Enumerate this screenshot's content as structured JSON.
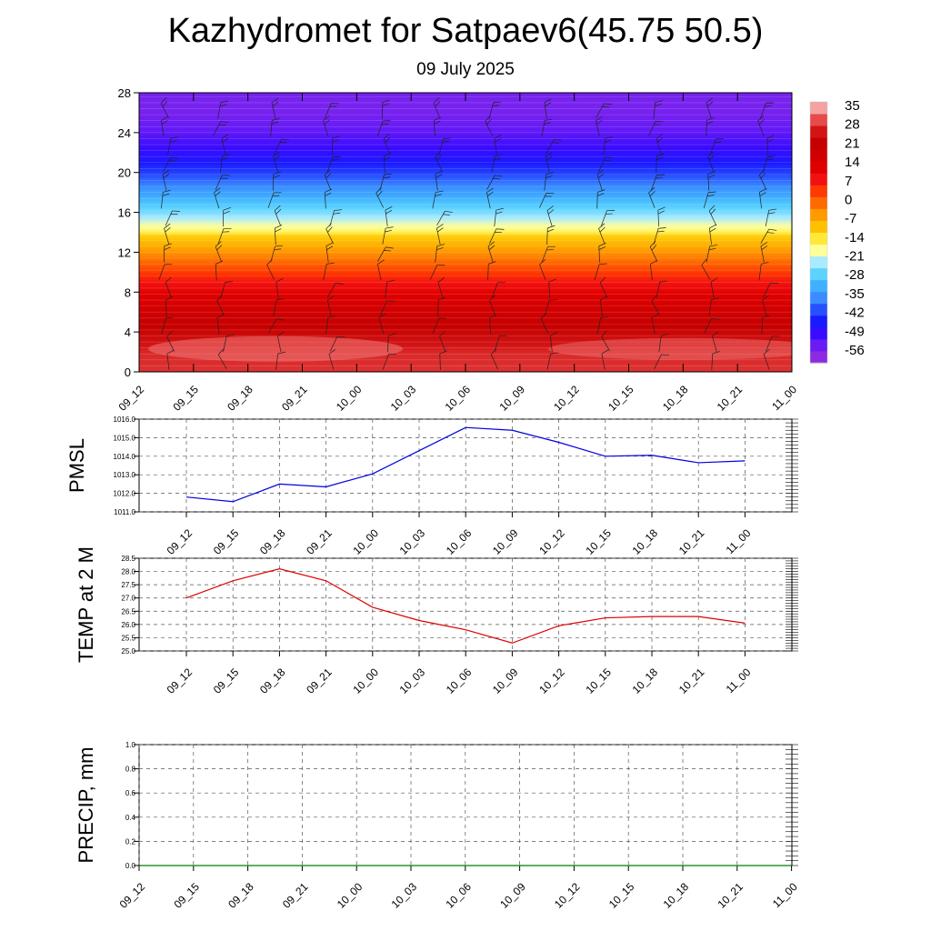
{
  "title": "Kazhydromet for Satpaev6(45.75 50.5)",
  "subtitle": "09 July 2025",
  "chart_data": [
    {
      "type": "heatmap",
      "x_labels": [
        "09_12",
        "09_15",
        "09_18",
        "09_21",
        "10_00",
        "10_03",
        "10_06",
        "10_09",
        "10_12",
        "10_15",
        "10_18",
        "10_21",
        "11_00"
      ],
      "y_ticks": [
        "0",
        "4",
        "8",
        "12",
        "16",
        "20",
        "24",
        "28"
      ],
      "ylim": [
        0,
        28
      ],
      "colorbar_labels": [
        "35",
        "28",
        "21",
        "14",
        "7",
        "0",
        "-7",
        "-14",
        "-21",
        "-28",
        "-35",
        "-42",
        "-49",
        "-56"
      ],
      "colorbar_range": [
        -63,
        39
      ],
      "colorbar_colors": [
        "#8b2be2",
        "#6a1cf5",
        "#3a0cff",
        "#1a1aff",
        "#2850ff",
        "#3a8cff",
        "#3fb0ff",
        "#5cd3ff",
        "#a8eaff",
        "#ffff9a",
        "#ffe83a",
        "#ffc000",
        "#ff9a00",
        "#ff6a00",
        "#ff3a00",
        "#f31010",
        "#e00000",
        "#d00000",
        "#c60000",
        "#d21414",
        "#e64a4a",
        "#f4a2a2"
      ],
      "profile": [
        {
          "y": 0,
          "v": 32
        },
        {
          "y": 2,
          "v": 31
        },
        {
          "y": 4,
          "v": 26
        },
        {
          "y": 6,
          "v": 20
        },
        {
          "y": 8,
          "v": 14
        },
        {
          "y": 10,
          "v": 5
        },
        {
          "y": 12,
          "v": -4
        },
        {
          "y": 13.8,
          "v": -12
        },
        {
          "y": 14,
          "v": -16
        },
        {
          "y": 16,
          "v": -27
        },
        {
          "y": 18,
          "v": -36
        },
        {
          "y": 20,
          "v": -45
        },
        {
          "y": 22,
          "v": -52
        },
        {
          "y": 24,
          "v": -57
        },
        {
          "y": 26,
          "v": -60
        },
        {
          "y": 28,
          "v": -60
        }
      ]
    },
    {
      "type": "line",
      "ylabel": "PMSL",
      "x": [
        "09_12",
        "09_15",
        "09_18",
        "09_21",
        "10_00",
        "10_03",
        "10_06",
        "10_09",
        "10_12",
        "10_15",
        "10_18",
        "10_21",
        "11_00"
      ],
      "series": [
        {
          "values": [
            1011.8,
            1011.55,
            1012.5,
            1012.35,
            1013.05,
            1014.3,
            1015.55,
            1015.4,
            1014.75,
            1014.0,
            1014.05,
            1013.65,
            1013.75
          ]
        }
      ],
      "color": "#0000e0",
      "ylim": [
        1011.0,
        1016.0
      ],
      "y_ticks": [
        "1011.0",
        "1012.0",
        "1013.0",
        "1014.0",
        "1015.0",
        "1016.0"
      ],
      "grid": true
    },
    {
      "type": "line",
      "ylabel": "TEMP at 2 M",
      "x": [
        "09_12",
        "09_15",
        "09_18",
        "09_21",
        "10_00",
        "10_03",
        "10_06",
        "10_09",
        "10_12",
        "10_15",
        "10_18",
        "10_21",
        "11_00"
      ],
      "series": [
        {
          "values": [
            27.0,
            27.65,
            28.1,
            27.65,
            26.65,
            26.15,
            25.8,
            25.3,
            25.95,
            26.25,
            26.3,
            26.3,
            26.05
          ]
        }
      ],
      "color": "#e00000",
      "ylim": [
        25.0,
        28.5
      ],
      "y_ticks": [
        "25.0",
        "25.5",
        "26.0",
        "26.5",
        "27.0",
        "27.5",
        "28.0",
        "28.5"
      ],
      "grid": true
    },
    {
      "type": "line",
      "ylabel": "PRECIP, mm",
      "x": [
        "09_12",
        "09_15",
        "09_18",
        "09_21",
        "10_00",
        "10_03",
        "10_06",
        "10_09",
        "10_12",
        "10_15",
        "10_18",
        "10_21",
        "11_00"
      ],
      "series": [
        {
          "values": [
            0,
            0,
            0,
            0,
            0,
            0,
            0,
            0,
            0,
            0,
            0,
            0,
            0
          ]
        }
      ],
      "color": "#008000",
      "ylim": [
        0.0,
        1.0
      ],
      "y_ticks": [
        "0.0",
        "0.2",
        "0.4",
        "0.6",
        "0.8",
        "1.0"
      ],
      "grid": true
    }
  ]
}
